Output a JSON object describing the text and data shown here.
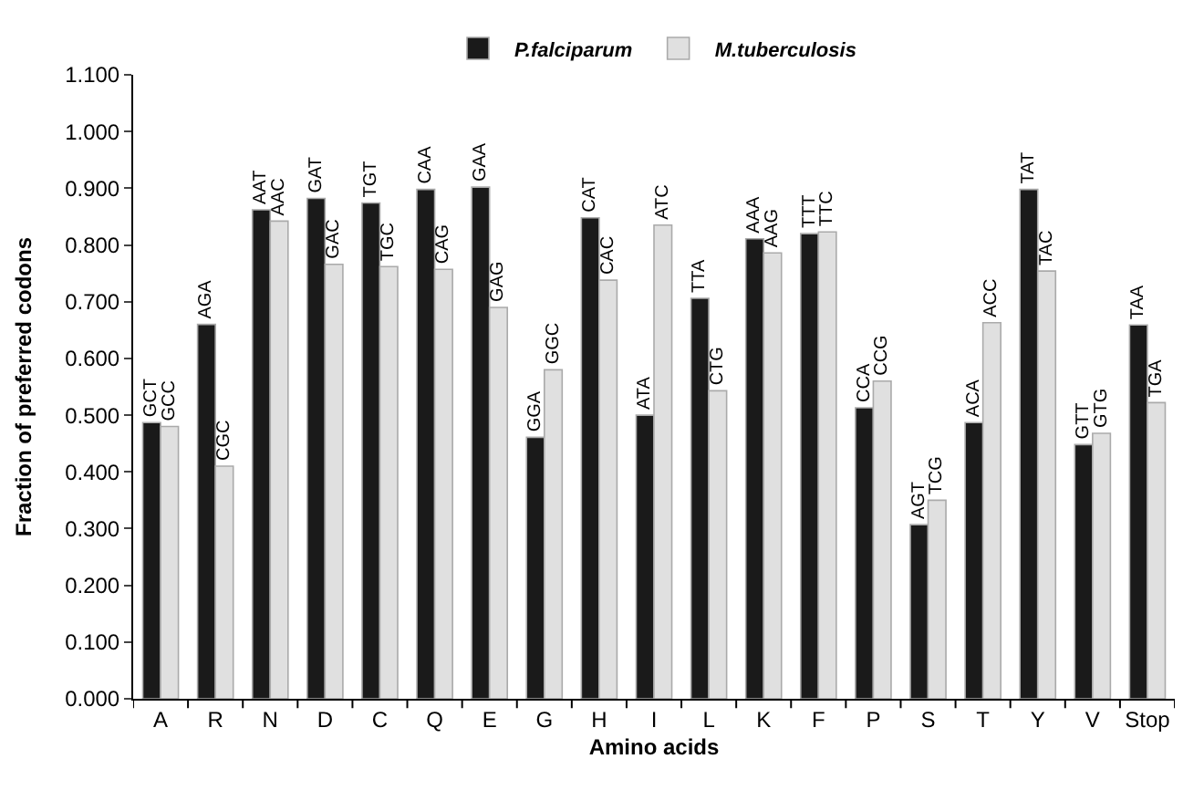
{
  "chart_data": {
    "type": "bar",
    "xlabel": "Amino acids",
    "ylabel": "Fraction of preferred codons",
    "categories": [
      "A",
      "R",
      "N",
      "D",
      "C",
      "Q",
      "E",
      "G",
      "H",
      "I",
      "L",
      "K",
      "F",
      "P",
      "S",
      "T",
      "Y",
      "V",
      "Stop"
    ],
    "series": [
      {
        "name": "P.falciparum",
        "color": "#1a1a1a",
        "values": [
          0.487,
          0.66,
          0.862,
          0.882,
          0.874,
          0.898,
          0.902,
          0.461,
          0.848,
          0.5,
          0.706,
          0.811,
          0.82,
          0.513,
          0.307,
          0.487,
          0.898,
          0.448,
          0.659
        ],
        "value_labels": [
          "GCT",
          "AGA",
          "AAT",
          "GAT",
          "TGT",
          "CAA",
          "GAA",
          "GGA",
          "CAT",
          "ATA",
          "TTA",
          "AAA",
          "TTT",
          "CCA",
          "AGT",
          "ACA",
          "TAT",
          "GTT",
          "TAA"
        ]
      },
      {
        "name": "M.tuberculosis",
        "color": "#e0e0e0",
        "values": [
          0.48,
          0.41,
          0.842,
          0.766,
          0.762,
          0.757,
          0.69,
          0.58,
          0.738,
          0.835,
          0.543,
          0.786,
          0.823,
          0.56,
          0.35,
          0.663,
          0.754,
          0.468,
          0.522
        ],
        "value_labels": [
          "GCC",
          "CGC",
          "AAC",
          "GAC",
          "TGC",
          "CAG",
          "GAG",
          "GGC",
          "CAC",
          "ATC",
          "CTG",
          "AAG",
          "TTC",
          "CCG",
          "TCG",
          "ACC",
          "TAC",
          "GTG",
          "TGA"
        ]
      }
    ],
    "ylim": [
      0,
      1.1
    ],
    "yticks": [
      {
        "value": 0,
        "label": "0.000"
      },
      {
        "value": 0.1,
        "label": "0.100"
      },
      {
        "value": 0.2,
        "label": "0.200"
      },
      {
        "value": 0.3,
        "label": "0.300"
      },
      {
        "value": 0.4,
        "label": "0.400"
      },
      {
        "value": 0.5,
        "label": "0.500"
      },
      {
        "value": 0.6,
        "label": "0.600"
      },
      {
        "value": 0.7,
        "label": "0.700"
      },
      {
        "value": 0.8,
        "label": "0.800"
      },
      {
        "value": 0.9,
        "label": "0.900"
      },
      {
        "value": 1.0,
        "label": "1.000"
      },
      {
        "value": 1.1,
        "label": "1.100"
      }
    ],
    "legend": "top"
  }
}
